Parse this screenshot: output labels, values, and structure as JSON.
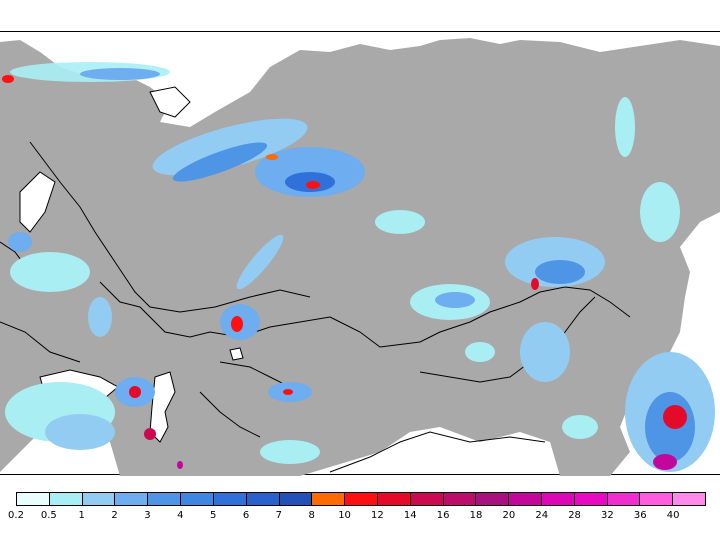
{
  "legend": {
    "colors": [
      "#e8fdfd",
      "#a9eef3",
      "#93ccf2",
      "#6dadf0",
      "#4f95e6",
      "#3f86e2",
      "#2f71d9",
      "#2a62cd",
      "#2451b8",
      "#ff6b00",
      "#ff1010",
      "#e60a2a",
      "#cc0a50",
      "#bc0d6b",
      "#aa1180",
      "#c4079c",
      "#dc07b6",
      "#e70ac2",
      "#f02ed0",
      "#ff5ce0",
      "#ff8aec"
    ],
    "ticks": [
      "0.2",
      "0.5",
      "1",
      "2",
      "3",
      "4",
      "5",
      "6",
      "7",
      "8",
      "10",
      "12",
      "14",
      "16",
      "18",
      "20",
      "24",
      "28",
      "32",
      "36",
      "40"
    ]
  },
  "map_colors": {
    "land": "#a9a9a9",
    "water": "#ffffff",
    "border": "#000000"
  }
}
